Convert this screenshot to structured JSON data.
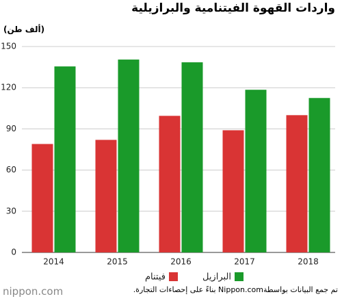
{
  "chart_data": {
    "type": "bar",
    "title": "واردات القهوة الفيتنامية والبرازيلية",
    "y_label": "(ألف طن)",
    "categories": [
      "2014",
      "2015",
      "2016",
      "2017",
      "2018"
    ],
    "series": [
      {
        "name": "فيتنام",
        "color": "#d93434",
        "values": [
          79,
          82,
          99.5,
          89,
          100
        ]
      },
      {
        "name": "البرازيل",
        "color": "#1a9a2a",
        "values": [
          135.5,
          140.5,
          138.5,
          118.5,
          112.5
        ]
      }
    ],
    "ylim": [
      0,
      150
    ],
    "yticks": [
      0,
      30,
      60,
      90,
      120,
      150
    ],
    "grid": true,
    "source": "تم جمع البيانات بواسطةNippon.com بناءً على إحصاءات التجارة.",
    "logo": "nippon.com"
  }
}
